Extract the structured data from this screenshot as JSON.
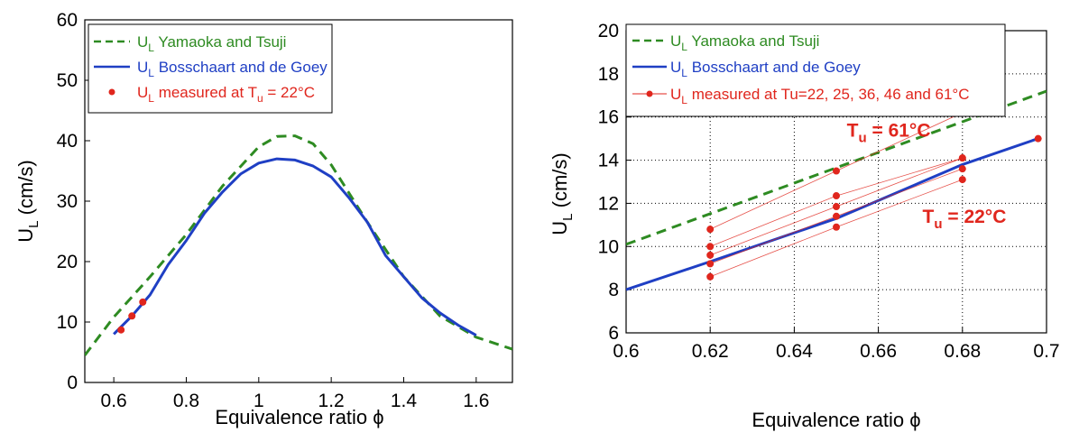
{
  "chart_data": [
    {
      "type": "line",
      "xlabel": "Equivalence ratio ϕ",
      "ylabel": "U",
      "ylabel_sub": "L",
      "ylabel_suffix": " (cm/s)",
      "xlim": [
        0.52,
        1.7
      ],
      "ylim": [
        0,
        60
      ],
      "x_ticks": [
        "0.6",
        "0.8",
        "1",
        "1.2",
        "1.4",
        "1.6"
      ],
      "y_ticks": [
        "0",
        "10",
        "20",
        "30",
        "40",
        "50",
        "60"
      ],
      "grid": false,
      "legend_position": "top-left",
      "series": [
        {
          "name": "U_L Yamaoka and Tsuji",
          "legend_main": "U",
          "legend_sub": "L",
          "legend_rest": " Yamaoka and Tsuji",
          "color": "#2e8b22",
          "style": "dashed",
          "x": [
            0.52,
            0.6,
            0.7,
            0.8,
            0.9,
            1.0,
            1.05,
            1.1,
            1.15,
            1.2,
            1.3,
            1.4,
            1.5,
            1.6,
            1.7
          ],
          "y": [
            4.5,
            10.8,
            17.5,
            24.5,
            32.5,
            39.0,
            40.7,
            40.8,
            39.5,
            36.0,
            26.5,
            17.5,
            11.0,
            7.5,
            5.5
          ]
        },
        {
          "name": "U_L Bosschaart and de Goey",
          "legend_main": "U",
          "legend_sub": "L",
          "legend_rest": " Bosschaart and de Goey",
          "color": "#1f3fc4",
          "style": "solid",
          "x": [
            0.6,
            0.65,
            0.7,
            0.75,
            0.8,
            0.85,
            0.9,
            0.95,
            1.0,
            1.05,
            1.1,
            1.15,
            1.2,
            1.25,
            1.3,
            1.35,
            1.4,
            1.45,
            1.5,
            1.55,
            1.6
          ],
          "y": [
            8.0,
            11.0,
            14.5,
            19.5,
            23.5,
            28.0,
            31.5,
            34.5,
            36.3,
            37.0,
            36.8,
            35.8,
            34.0,
            30.5,
            26.5,
            21.0,
            17.5,
            14.0,
            11.5,
            9.5,
            7.8
          ]
        },
        {
          "name": "U_L measured at T_u = 22°C",
          "legend_main": "U",
          "legend_sub": "L",
          "legend_rest": " measured at T",
          "legend_sub2": "u",
          "legend_rest2": " = 22°C",
          "color": "#e0261d",
          "style": "markers",
          "x": [
            0.62,
            0.65,
            0.68
          ],
          "y": [
            8.7,
            11.0,
            13.3
          ]
        }
      ]
    },
    {
      "type": "line",
      "xlabel": "Equivalence ratio ϕ",
      "ylabel": "U",
      "ylabel_sub": "L",
      "ylabel_suffix": " (cm/s)",
      "xlim": [
        0.6,
        0.7
      ],
      "ylim": [
        6,
        20
      ],
      "x_ticks": [
        "0.6",
        "0.62",
        "0.64",
        "0.66",
        "0.68",
        "0.7"
      ],
      "y_ticks": [
        "6",
        "8",
        "10",
        "12",
        "14",
        "16",
        "18",
        "20"
      ],
      "grid": true,
      "legend_position": "top-left",
      "annotations": [
        {
          "main": "T",
          "sub": "u",
          "rest": " = 61°C",
          "x": 0.6525,
          "y": 15.1
        },
        {
          "main": "T",
          "sub": "u",
          "rest": " = 22°C",
          "x": 0.6705,
          "y": 11.1
        }
      ],
      "series": [
        {
          "name": "U_L Yamaoka and Tsuji",
          "legend_main": "U",
          "legend_sub": "L",
          "legend_rest": " Yamaoka and Tsuji",
          "color": "#2e8b22",
          "style": "dashed",
          "x": [
            0.6,
            0.7
          ],
          "y": [
            10.1,
            17.2
          ]
        },
        {
          "name": "U_L Bosschaart and de Goey",
          "legend_main": "U",
          "legend_sub": "L",
          "legend_rest": " Bosschaart and de Goey",
          "color": "#1f3fc4",
          "style": "solid",
          "x": [
            0.6,
            0.62,
            0.65,
            0.68,
            0.698
          ],
          "y": [
            8.0,
            9.3,
            11.3,
            13.8,
            15.0
          ]
        },
        {
          "name": "U_L measured at Tu=22, 25, 36, 46 and 61°C",
          "legend_main": "U",
          "legend_sub": "L",
          "legend_rest": " measured at Tu=22, 25, 36, 46 and 61°C",
          "color": "#e0261d",
          "style": "line-markers",
          "x": [
            0.62,
            0.65,
            0.68
          ],
          "temperature_series": [
            {
              "y": [
                8.6,
                10.9,
                13.1
              ]
            },
            {
              "y": [
                9.2,
                11.4,
                13.6
              ]
            },
            {
              "y": [
                9.6,
                11.85,
                14.1
              ]
            },
            {
              "y": [
                10.0,
                12.35,
                14.1
              ]
            },
            {
              "y": [
                10.8,
                13.5,
                16.2
              ]
            }
          ],
          "extra_point": {
            "x": 0.698,
            "y": 15.0
          }
        }
      ]
    }
  ]
}
